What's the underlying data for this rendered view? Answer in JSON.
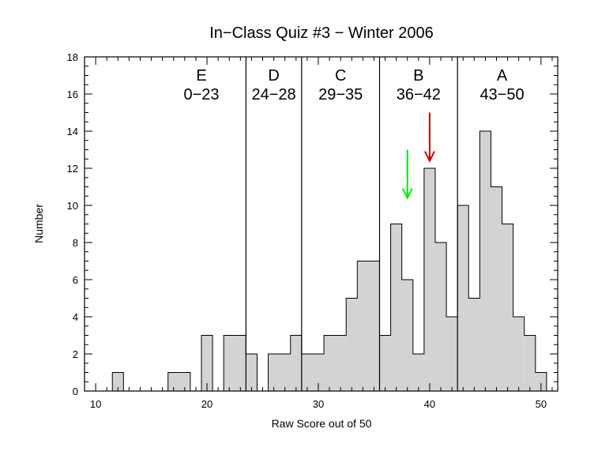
{
  "chart_data": {
    "type": "histogram",
    "title": "In−Class Quiz #3 − Winter 2006",
    "xlabel": "Raw Score out of 50",
    "ylabel": "Number",
    "xlim": [
      9,
      51.5
    ],
    "ylim": [
      0,
      18
    ],
    "x_ticks": [
      10,
      20,
      30,
      40,
      50
    ],
    "y_ticks": [
      0,
      2,
      4,
      6,
      8,
      10,
      12,
      14,
      16,
      18
    ],
    "bin_width": 1,
    "bins": [
      {
        "score": 12,
        "count": 1
      },
      {
        "score": 17,
        "count": 1
      },
      {
        "score": 18,
        "count": 1
      },
      {
        "score": 20,
        "count": 3
      },
      {
        "score": 22,
        "count": 3
      },
      {
        "score": 23,
        "count": 3
      },
      {
        "score": 24,
        "count": 2
      },
      {
        "score": 26,
        "count": 2
      },
      {
        "score": 27,
        "count": 2
      },
      {
        "score": 28,
        "count": 3
      },
      {
        "score": 29,
        "count": 2
      },
      {
        "score": 30,
        "count": 2
      },
      {
        "score": 31,
        "count": 3
      },
      {
        "score": 32,
        "count": 3
      },
      {
        "score": 33,
        "count": 5
      },
      {
        "score": 34,
        "count": 7
      },
      {
        "score": 35,
        "count": 7
      },
      {
        "score": 36,
        "count": 3
      },
      {
        "score": 37,
        "count": 9
      },
      {
        "score": 38,
        "count": 6
      },
      {
        "score": 39,
        "count": 2
      },
      {
        "score": 40,
        "count": 12
      },
      {
        "score": 41,
        "count": 8
      },
      {
        "score": 42,
        "count": 4
      },
      {
        "score": 43,
        "count": 10
      },
      {
        "score": 44,
        "count": 5
      },
      {
        "score": 45,
        "count": 14
      },
      {
        "score": 46,
        "count": 11
      },
      {
        "score": 47,
        "count": 9
      },
      {
        "score": 48,
        "count": 4
      },
      {
        "score": 49,
        "count": 3
      },
      {
        "score": 50,
        "count": 1
      }
    ],
    "grade_boundaries": [
      23.5,
      28.5,
      35.5,
      42.5
    ],
    "grades": [
      {
        "letter": "E",
        "range": "0−23",
        "center": 19.5
      },
      {
        "letter": "D",
        "range": "24−28",
        "center": 26
      },
      {
        "letter": "C",
        "range": "29−35",
        "center": 32
      },
      {
        "letter": "B",
        "range": "36−42",
        "center": 39
      },
      {
        "letter": "A",
        "range": "43−50",
        "center": 46.5
      }
    ],
    "arrows": [
      {
        "x": 38,
        "y_from": 13,
        "y_to": 10.4,
        "color": "#00ee00"
      },
      {
        "x": 40,
        "y_from": 15,
        "y_to": 12.4,
        "color": "#cc0000"
      }
    ],
    "bar_fill": "#d3d3d3",
    "grid": false
  }
}
